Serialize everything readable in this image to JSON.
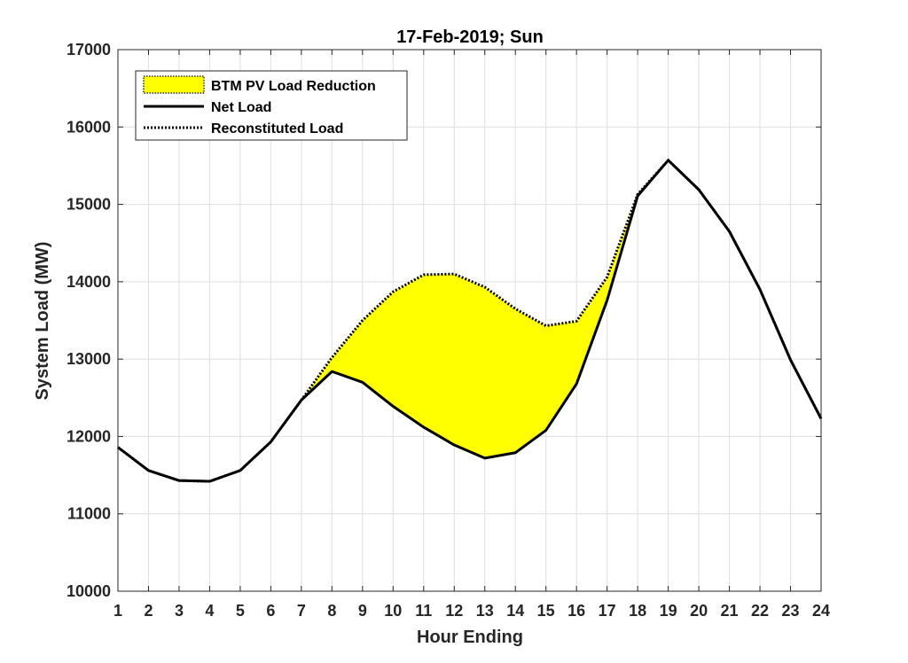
{
  "chart_data": {
    "type": "line",
    "title": "17-Feb-2019; Sun",
    "xlabel": "Hour Ending",
    "ylabel": "System Load (MW)",
    "xlim": [
      1,
      24
    ],
    "ylim": [
      10000,
      17000
    ],
    "xticks": [
      1,
      2,
      3,
      4,
      5,
      6,
      7,
      8,
      9,
      10,
      11,
      12,
      13,
      14,
      15,
      16,
      17,
      18,
      19,
      20,
      21,
      22,
      23,
      24
    ],
    "yticks": [
      10000,
      11000,
      12000,
      13000,
      14000,
      15000,
      16000,
      17000
    ],
    "grid": true,
    "legend_position": "top-left",
    "x": [
      1,
      2,
      3,
      4,
      5,
      6,
      7,
      8,
      9,
      10,
      11,
      12,
      13,
      14,
      15,
      16,
      17,
      18,
      19,
      20,
      21,
      22,
      23,
      24
    ],
    "series": [
      {
        "name": "Net Load",
        "style": "solid",
        "color": "#000000",
        "values": [
          11860,
          11560,
          11430,
          11420,
          11560,
          11930,
          12470,
          12840,
          12700,
          12390,
          12120,
          11890,
          11720,
          11790,
          12080,
          12680,
          13760,
          15110,
          15570,
          15190,
          14650,
          13900,
          12990,
          12230
        ]
      },
      {
        "name": "Reconstituted Load",
        "style": "dotted",
        "color": "#000000",
        "values": [
          11860,
          11560,
          11430,
          11420,
          11560,
          11930,
          12470,
          13020,
          13500,
          13870,
          14090,
          14100,
          13930,
          13650,
          13430,
          13490,
          14060,
          15130,
          15570,
          15190,
          14650,
          13900,
          12990,
          12230
        ]
      }
    ],
    "fill": {
      "name": "BTM PV Load Reduction",
      "between": [
        "Net Load",
        "Reconstituted Load"
      ],
      "color": "#ffff00"
    }
  }
}
